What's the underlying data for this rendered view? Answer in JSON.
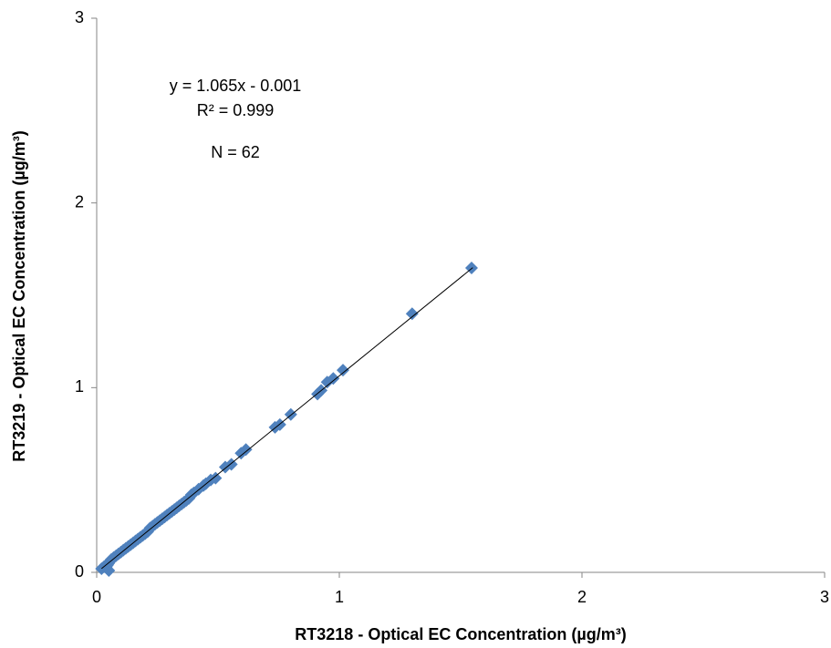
{
  "chart_data": {
    "type": "scatter",
    "xlabel": "RT3218 - Optical EC Concentration (µg/m³)",
    "ylabel": "RT3219 - Optical EC Concentration (µg/m³)",
    "annotations": [
      "y = 1.065x - 0.001",
      "R² = 0.999",
      "N = 62"
    ],
    "x": [
      1.545,
      1.3,
      1.015,
      0.975,
      0.95,
      0.925,
      0.91,
      0.8,
      0.755,
      0.735,
      0.615,
      0.595,
      0.555,
      0.53,
      0.49,
      0.47,
      0.45,
      0.44,
      0.42,
      0.4,
      0.39,
      0.38,
      0.37,
      0.36,
      0.35,
      0.34,
      0.33,
      0.32,
      0.31,
      0.3,
      0.29,
      0.28,
      0.27,
      0.26,
      0.25,
      0.24,
      0.23,
      0.22,
      0.21,
      0.2,
      0.19,
      0.18,
      0.17,
      0.16,
      0.15,
      0.14,
      0.13,
      0.12,
      0.11,
      0.1,
      0.09,
      0.08,
      0.07,
      0.06,
      0.055,
      0.05,
      0.045,
      0.04,
      0.035,
      0.03,
      0.02,
      0.05
    ],
    "values": [
      1.648,
      1.4,
      1.095,
      1.05,
      1.03,
      0.985,
      0.965,
      0.855,
      0.8,
      0.785,
      0.665,
      0.645,
      0.585,
      0.57,
      0.51,
      0.5,
      0.48,
      0.47,
      0.45,
      0.43,
      0.42,
      0.4,
      0.39,
      0.38,
      0.37,
      0.36,
      0.35,
      0.34,
      0.33,
      0.32,
      0.31,
      0.3,
      0.29,
      0.28,
      0.27,
      0.26,
      0.25,
      0.24,
      0.22,
      0.21,
      0.2,
      0.19,
      0.18,
      0.17,
      0.16,
      0.15,
      0.14,
      0.13,
      0.12,
      0.11,
      0.1,
      0.09,
      0.08,
      0.07,
      0.06,
      0.05,
      0.04,
      0.03,
      0.035,
      0.03,
      0.02,
      0.01
    ],
    "color": "#4f81bd",
    "trendline": {
      "slope": 1.065,
      "intercept": -0.001,
      "x": [
        0.02,
        1.55
      ],
      "color": "#000000"
    },
    "xlim": [
      0,
      3
    ],
    "ylim": [
      0,
      3
    ],
    "xticks": [
      0,
      1,
      2,
      3
    ],
    "yticks": [
      0,
      1,
      2,
      3
    ],
    "grid": false
  }
}
